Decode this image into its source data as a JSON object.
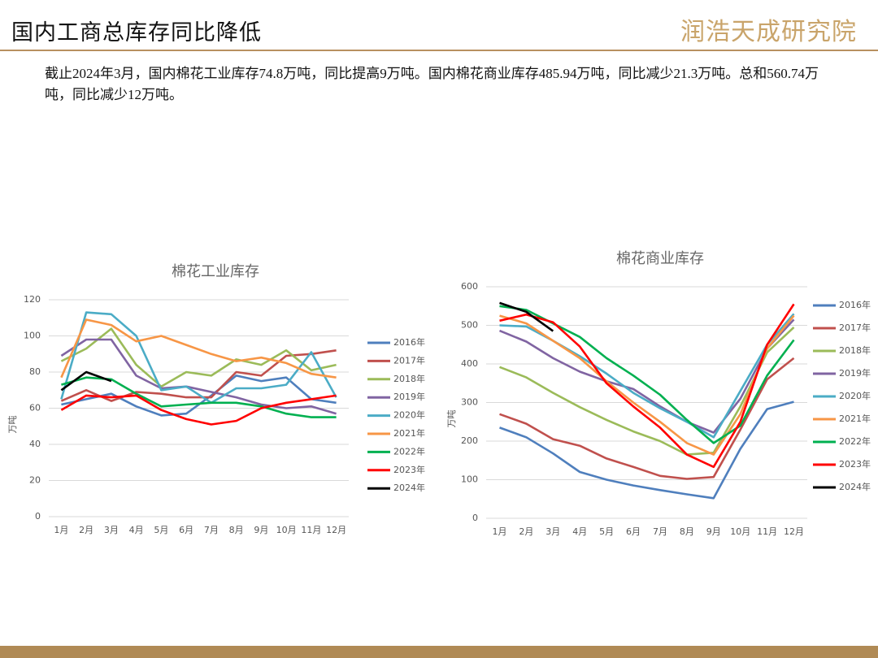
{
  "header": {
    "title": "国内工商总库存同比降低",
    "logo": "润浩天成研究院",
    "text": "截止2024年3月，国内棉花工业库存74.8万吨，同比提高9万吨。国内棉花商业库存485.94万吨，同比减少21.3万吨。总和560.74万吨，同比减少12万吨。"
  },
  "chart_data": [
    {
      "type": "line",
      "title": "棉花工业库存",
      "y_label": "万吨",
      "categories": [
        "1月",
        "2月",
        "3月",
        "4月",
        "5月",
        "6月",
        "7月",
        "8月",
        "9月",
        "10月",
        "11月",
        "12月"
      ],
      "ylim": [
        0,
        120
      ],
      "yticks": [
        0,
        20,
        40,
        60,
        80,
        100,
        120
      ],
      "grid": true,
      "legend": "right",
      "series": [
        {
          "name": "2016年",
          "color": "#4f7fbd",
          "values": [
            62,
            65,
            68,
            61,
            56,
            57,
            67,
            78,
            75,
            77,
            65,
            63
          ]
        },
        {
          "name": "2017年",
          "color": "#c0504d",
          "values": [
            64,
            70,
            64,
            69,
            68,
            66,
            66,
            80,
            78,
            89,
            90,
            92
          ]
        },
        {
          "name": "2018年",
          "color": "#9bbb59",
          "values": [
            86,
            93,
            104,
            84,
            72,
            80,
            78,
            87,
            84,
            92,
            81,
            84
          ]
        },
        {
          "name": "2019年",
          "color": "#8064a2",
          "values": [
            89,
            98,
            98,
            78,
            71,
            72,
            69,
            66,
            62,
            60,
            61,
            57
          ]
        },
        {
          "name": "2020年",
          "color": "#4bacc6",
          "values": [
            65,
            113,
            112,
            100,
            70,
            72,
            63,
            71,
            71,
            73,
            91,
            66
          ]
        },
        {
          "name": "2021年",
          "color": "#f79646",
          "values": [
            77,
            109,
            106,
            97,
            100,
            95,
            90,
            86,
            88,
            85,
            79,
            77
          ]
        },
        {
          "name": "2022年",
          "color": "#00b050",
          "values": [
            73,
            77,
            76,
            68,
            61,
            62,
            63,
            63,
            61,
            57,
            55,
            55
          ]
        },
        {
          "name": "2023年",
          "color": "#ff0000",
          "values": [
            59,
            67,
            66,
            67,
            59,
            54,
            51,
            53,
            60,
            63,
            65,
            67
          ]
        },
        {
          "name": "2024年",
          "color": "#000000",
          "values": [
            70,
            80,
            75,
            null,
            null,
            null,
            null,
            null,
            null,
            null,
            null,
            null
          ]
        }
      ]
    },
    {
      "type": "line",
      "title": "棉花商业库存",
      "y_label": "万吨",
      "categories": [
        "1月",
        "2月",
        "3月",
        "4月",
        "5月",
        "6月",
        "7月",
        "8月",
        "9月",
        "10月",
        "11月",
        "12月"
      ],
      "ylim": [
        0,
        600
      ],
      "yticks": [
        0,
        100,
        200,
        300,
        400,
        500,
        600
      ],
      "grid": true,
      "legend": "right",
      "series": [
        {
          "name": "2016年",
          "color": "#4f7fbd",
          "values": [
            235,
            210,
            168,
            120,
            100,
            85,
            73,
            62,
            52,
            180,
            283,
            302
          ]
        },
        {
          "name": "2017年",
          "color": "#c0504d",
          "values": [
            270,
            245,
            205,
            188,
            155,
            133,
            110,
            102,
            107,
            230,
            360,
            415
          ]
        },
        {
          "name": "2018年",
          "color": "#9bbb59",
          "values": [
            392,
            365,
            325,
            288,
            255,
            225,
            200,
            165,
            170,
            290,
            430,
            495
          ]
        },
        {
          "name": "2019年",
          "color": "#8064a2",
          "values": [
            486,
            458,
            415,
            380,
            355,
            335,
            290,
            250,
            222,
            310,
            440,
            515
          ]
        },
        {
          "name": "2020年",
          "color": "#4bacc6",
          "values": [
            500,
            497,
            460,
            420,
            375,
            325,
            285,
            250,
            210,
            330,
            450,
            530
          ]
        },
        {
          "name": "2021年",
          "color": "#f79646",
          "values": [
            525,
            505,
            460,
            415,
            355,
            300,
            250,
            195,
            165,
            270,
            440,
            525
          ]
        },
        {
          "name": "2022年",
          "color": "#00b050",
          "values": [
            550,
            540,
            505,
            470,
            415,
            370,
            320,
            255,
            195,
            240,
            370,
            462
          ]
        },
        {
          "name": "2023年",
          "color": "#ff0000",
          "values": [
            512,
            528,
            508,
            445,
            350,
            290,
            235,
            165,
            133,
            250,
            450,
            555
          ]
        },
        {
          "name": "2024年",
          "color": "#000000",
          "values": [
            558,
            535,
            485,
            null,
            null,
            null,
            null,
            null,
            null,
            null,
            null,
            null
          ]
        }
      ]
    }
  ]
}
